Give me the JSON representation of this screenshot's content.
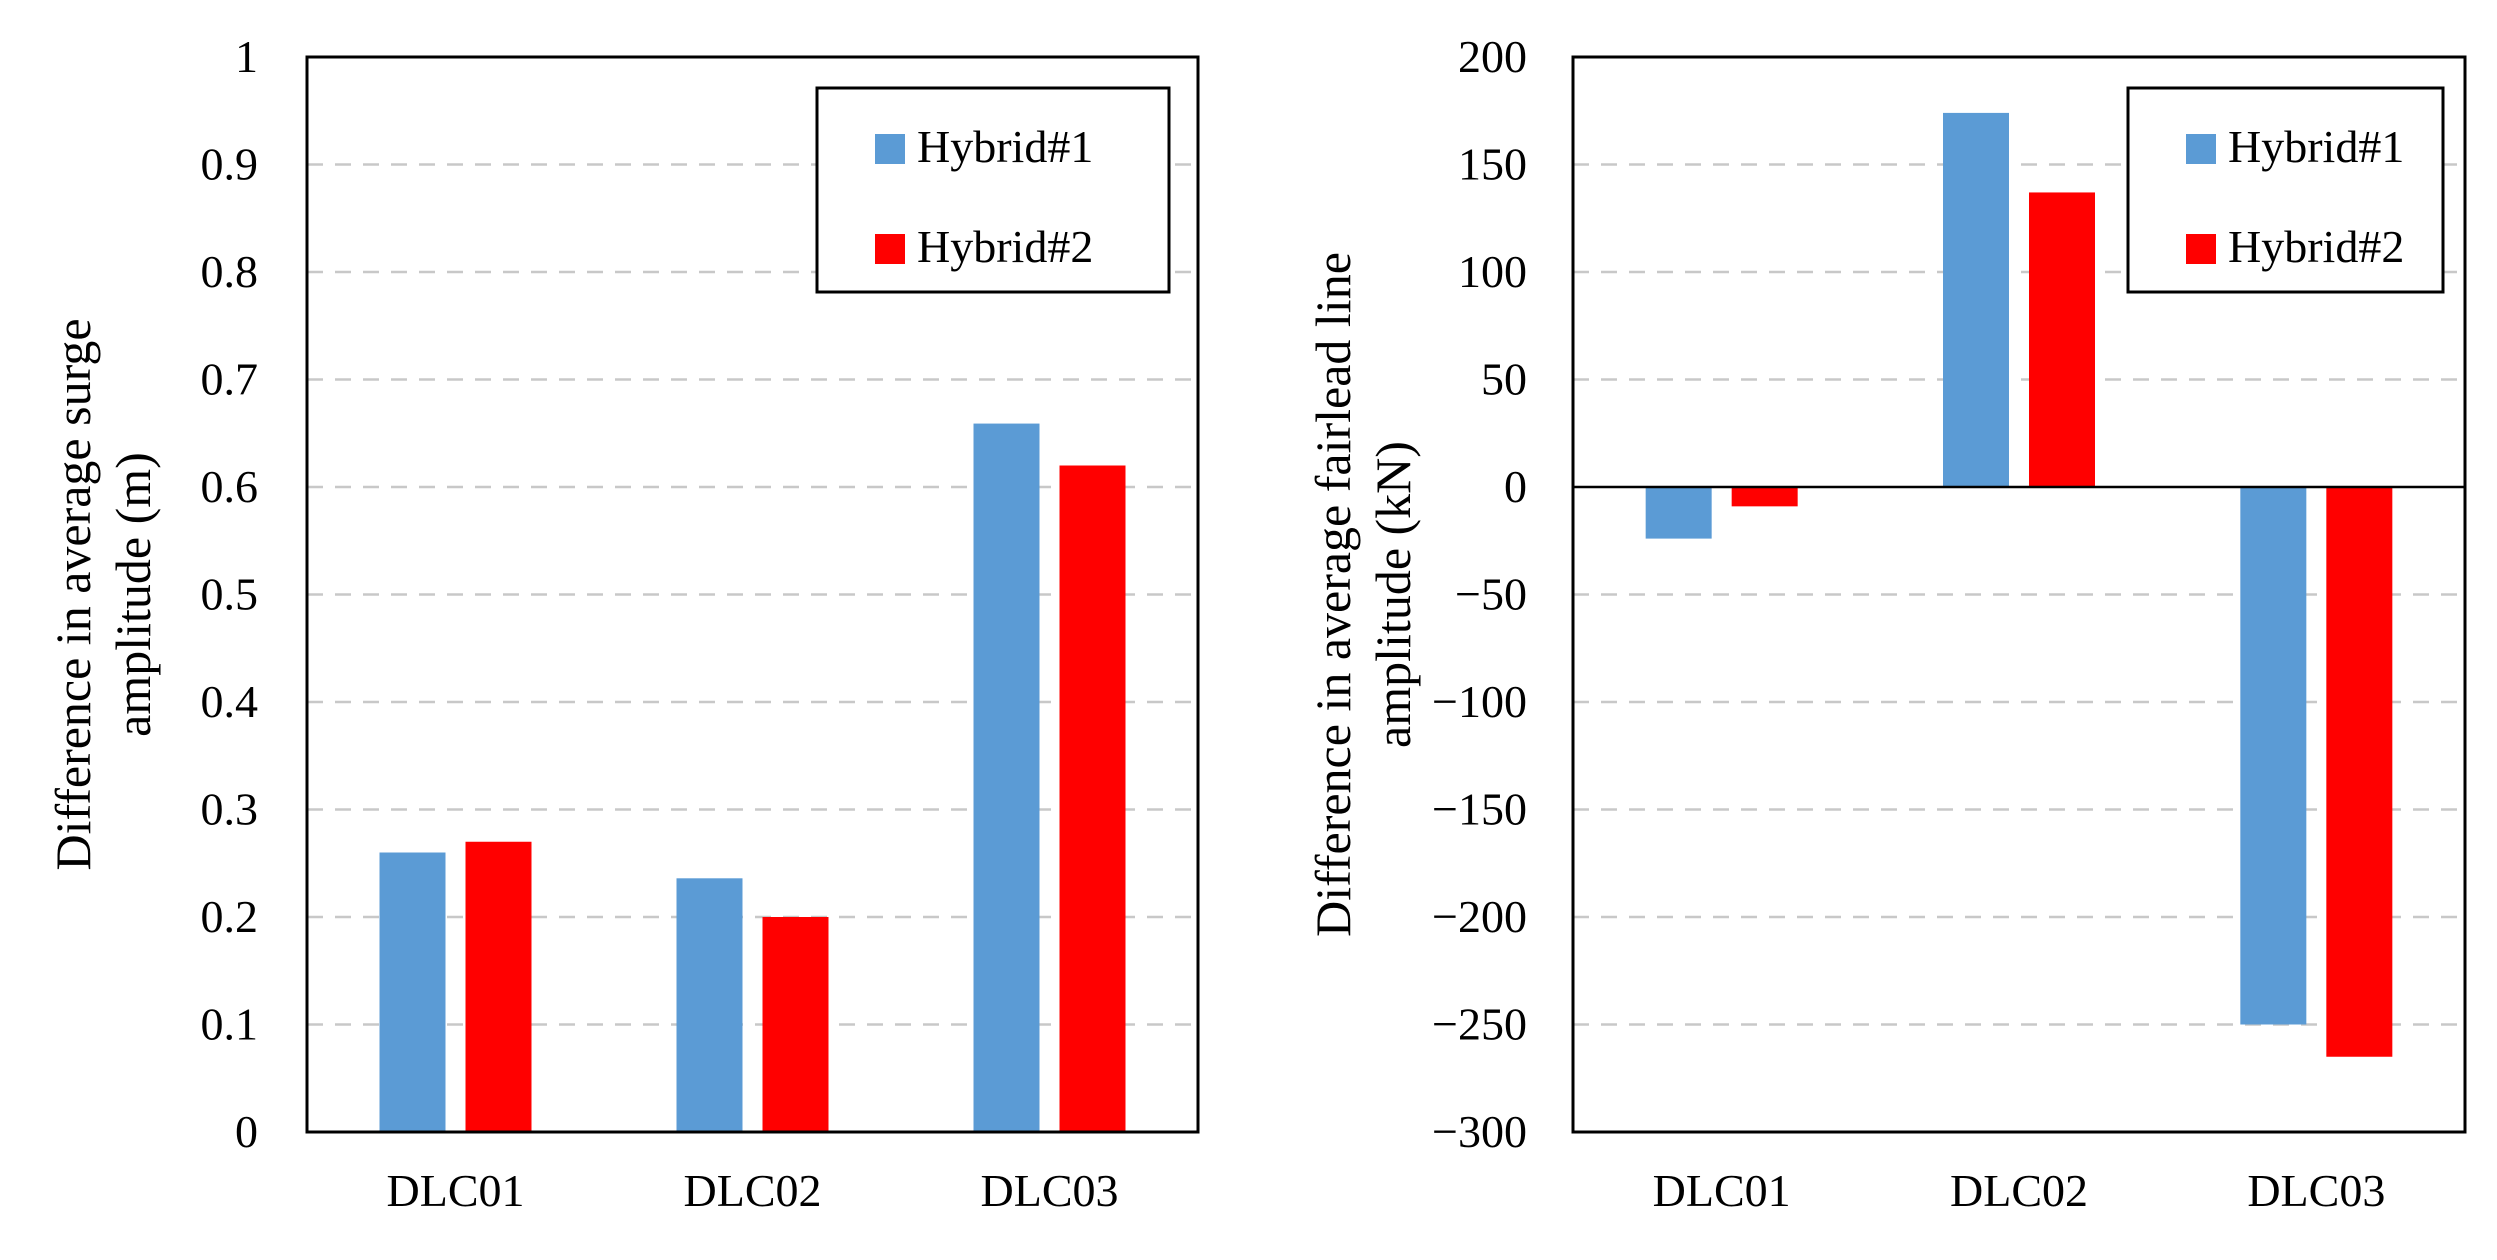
{
  "chart_data": [
    {
      "type": "bar",
      "title": "",
      "xlabel": "",
      "ylabel_lines": [
        "Difference in average surge",
        "amplitude (m)"
      ],
      "categories": [
        "DLC01",
        "DLC02",
        "DLC03"
      ],
      "series": [
        {
          "name": "Hybrid#1",
          "color": "#5b9bd5",
          "values": [
            0.26,
            0.236,
            0.659
          ]
        },
        {
          "name": "Hybrid#2",
          "color": "#ff0000",
          "values": [
            0.27,
            0.2,
            0.62
          ]
        }
      ],
      "ylim": [
        0,
        1
      ],
      "yticks": [
        0,
        0.1,
        0.2,
        0.3,
        0.4,
        0.5,
        0.6,
        0.7,
        0.8,
        0.9,
        1
      ],
      "ytick_labels": [
        "0",
        "0.1",
        "0.2",
        "0.3",
        "0.4",
        "0.5",
        "0.6",
        "0.7",
        "0.8",
        "0.9",
        "1"
      ],
      "grid": true,
      "legend": "top-right"
    },
    {
      "type": "bar",
      "title": "",
      "xlabel": "",
      "ylabel_lines": [
        "Difference in average fairlead line",
        "amplitude (kN)"
      ],
      "categories": [
        "DLC01",
        "DLC02",
        "DLC03"
      ],
      "series": [
        {
          "name": "Hybrid#1",
          "color": "#5b9bd5",
          "values": [
            -24,
            174,
            -250
          ]
        },
        {
          "name": "Hybrid#2",
          "color": "#ff0000",
          "values": [
            -9,
            137,
            -265
          ]
        }
      ],
      "ylim": [
        -300,
        200
      ],
      "yticks": [
        -300,
        -250,
        -200,
        -150,
        -100,
        -50,
        0,
        50,
        100,
        150,
        200
      ],
      "ytick_labels": [
        "−300",
        "−250",
        "−200",
        "−150",
        "−100",
        "−50",
        "0",
        "50",
        "100",
        "150",
        "200"
      ],
      "grid": true,
      "legend": "top-right"
    }
  ]
}
